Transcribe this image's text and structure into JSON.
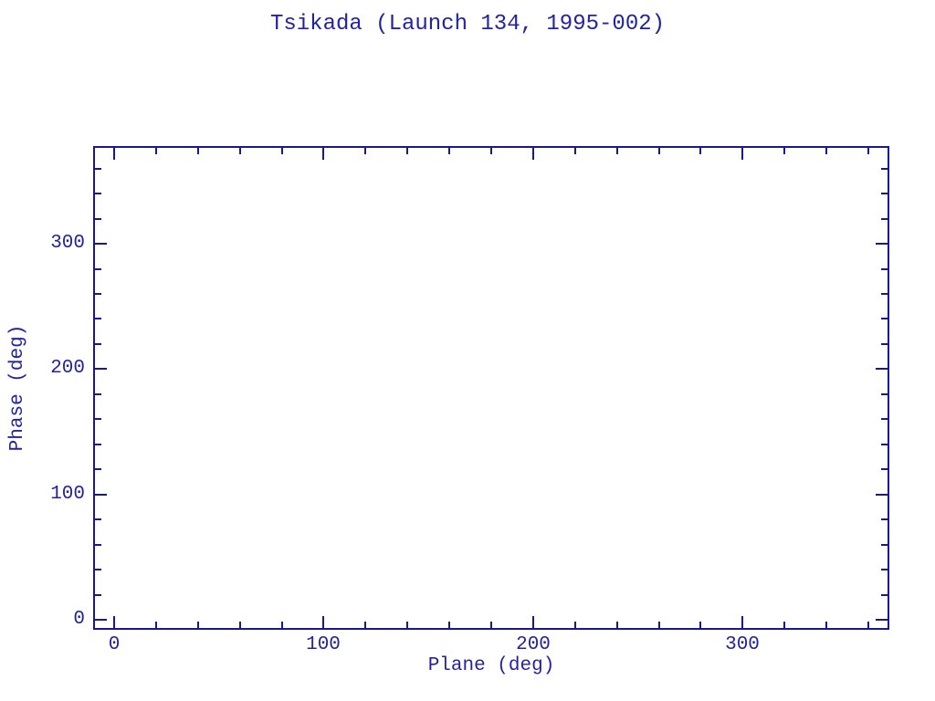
{
  "chart_data": {
    "type": "scatter",
    "title": "Tsikada (Launch 134, 1995-002)",
    "xlabel": "Plane (deg)",
    "ylabel": "Phase (deg)",
    "xlim": [
      -10,
      370
    ],
    "ylim": [
      -8,
      378
    ],
    "xticks_major": [
      0,
      100,
      200,
      300
    ],
    "xtick_labels": [
      "0",
      "100",
      "200",
      "300"
    ],
    "yticks_major": [
      0,
      100,
      200,
      300
    ],
    "ytick_labels": [
      "0",
      "100",
      "200",
      "300"
    ],
    "minor_tick_step": 20,
    "tick_direction": "in",
    "grid": false,
    "frame": true,
    "points": [],
    "series": [],
    "legend": null,
    "frame_color": "#19198C",
    "text_color": "#2323A0",
    "background_color": "#ffffff"
  }
}
